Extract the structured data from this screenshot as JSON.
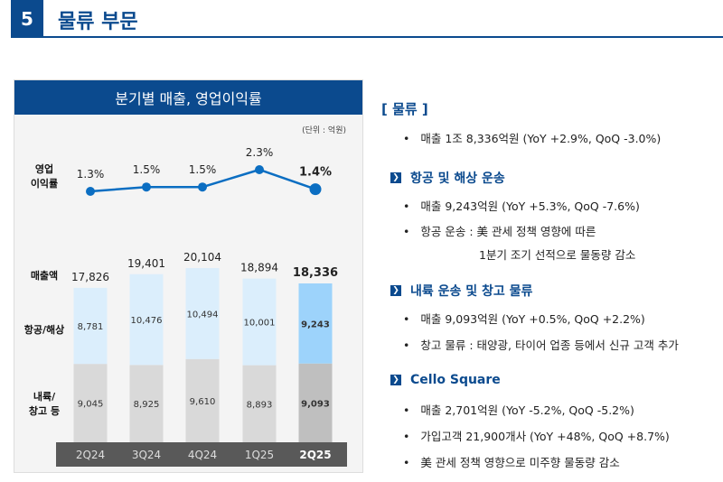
{
  "header": {
    "number": "5",
    "title": "물류 부문"
  },
  "chart_data": {
    "type": "bar",
    "title": "분기별 매출, 영업이익률",
    "unit": "(단위 : 억원)",
    "categories": [
      "2Q24",
      "3Q24",
      "4Q24",
      "1Q25",
      "2Q25"
    ],
    "row_labels": {
      "margin": "영업\n이익률",
      "total": "매출액",
      "air_sea": "항공/해상",
      "domestic": "내륙/\n창고 등"
    },
    "operating_margin": {
      "values": [
        1.3,
        1.5,
        1.5,
        2.3,
        1.4
      ],
      "labels": [
        "1.3%",
        "1.5%",
        "1.5%",
        "2.3%",
        "1.4%"
      ]
    },
    "totals": {
      "values": [
        17826,
        19401,
        20104,
        18894,
        18336
      ],
      "labels": [
        "17,826",
        "19,401",
        "20,104",
        "18,894",
        "18,336"
      ]
    },
    "series": [
      {
        "name": "내륙/창고 등",
        "values": [
          9045,
          8925,
          9610,
          8893,
          9093
        ],
        "labels": [
          "9,045",
          "8,925",
          "9,610",
          "8,893",
          "9,093"
        ]
      },
      {
        "name": "항공/해상",
        "values": [
          8781,
          10476,
          10494,
          10001,
          9243
        ],
        "labels": [
          "8,781",
          "10,476",
          "10,494",
          "10,001",
          "9,243"
        ]
      }
    ],
    "colors": {
      "air_sea": "#dbeefc",
      "air_sea_highlight": "#9dd3fb",
      "domestic": "#d9d9d9",
      "domestic_highlight": "#bfbfbf",
      "line": "#0b6ec2",
      "axis_band": "#595959"
    }
  },
  "right": {
    "section": "[ 물류 ]",
    "summary": "매출 1조 8,336억원 (YoY +2.9%, QoQ -3.0%)",
    "groups": [
      {
        "title": "항공 및 해상 운송",
        "items": [
          "매출 9,243억원 (YoY +5.3%, QoQ -7.6%)",
          "항공 운송 : 美 관세 정책 영향에 따른"
        ],
        "cont": "1분기 조기 선적으로 물동량 감소"
      },
      {
        "title": "내륙 운송 및 창고 물류",
        "items": [
          "매출 9,093억원 (YoY +0.5%, QoQ +2.2%)",
          "창고 물류 : 태양광, 타이어 업종 등에서 신규 고객 추가"
        ]
      },
      {
        "title": "Cello Square",
        "items": [
          "매출 2,701억원 (YoY -5.2%, QoQ -5.2%)",
          "가입고객 21,900개사 (YoY +48%, QoQ +8.7%)",
          "美 관세 정책 영향으로 미주향 물동량 감소"
        ]
      }
    ]
  }
}
